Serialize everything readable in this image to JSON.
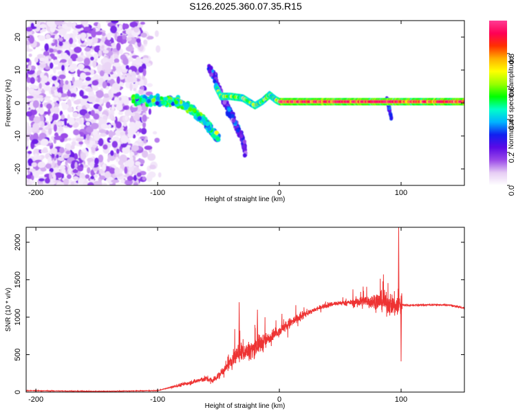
{
  "title": "S126.2025.360.07.35.R15",
  "colors": {
    "snr_line": "#ee3333",
    "frame": "#000000",
    "background": "#ffffff"
  },
  "chart_data": [
    {
      "type": "heatmap",
      "name": "spectrogram",
      "title": "S126.2025.360.07.35.R15",
      "xlabel": "Height of straight line (km)",
      "ylabel": "Frequency (Hz)",
      "xlim": [
        -208,
        152
      ],
      "ylim": [
        -25,
        25
      ],
      "xticks": [
        -200,
        -100,
        0,
        100
      ],
      "yticks": [
        -20,
        -10,
        0,
        10,
        20
      ],
      "colorbar": {
        "label": "Normalized spectral amplitude",
        "range": [
          0,
          1
        ],
        "ticks": [
          "0.0",
          "0.2",
          "0.4",
          "0.6",
          "0.8"
        ],
        "tick_values": [
          0.0,
          0.2,
          0.4,
          0.6,
          0.8
        ],
        "colors": [
          "#ffffff",
          "#e6cdf4",
          "#9a49e8",
          "#5a0ae6",
          "#1020f0",
          "#00b4ff",
          "#00ffc8",
          "#00ff00",
          "#9aff00",
          "#ffff00",
          "#ffb000",
          "#ff3000",
          "#ff0055",
          "#ff3b93"
        ]
      },
      "features": [
        {
          "label": "noise",
          "x_range": [
            -208,
            -110
          ],
          "freq_range": [
            -25,
            25
          ],
          "amplitude": 0.15
        },
        {
          "label": "signal_pre",
          "points": [
            [
              -120,
              1.0
            ],
            [
              -100,
              0.5
            ],
            [
              -85,
              0.5
            ],
            [
              -75,
              -1.5
            ],
            [
              -65,
              -4.0
            ],
            [
              -58,
              -7.0
            ],
            [
              -50,
              -11.0
            ]
          ],
          "amplitude": 0.45
        },
        {
          "label": "doppler_branch",
          "points": [
            [
              -58,
              11.0
            ],
            [
              -52,
              7.0
            ],
            [
              -46,
              1.0
            ],
            [
              -40,
              -3.0
            ],
            [
              -35,
              -7.0
            ],
            [
              -30,
              -11.0
            ],
            [
              -28,
              -15.0
            ]
          ],
          "amplitude": 0.25
        },
        {
          "label": "carrier",
          "points": [
            [
              -52,
              5.0
            ],
            [
              -48,
              2.0
            ],
            [
              -40,
              2.0
            ],
            [
              -30,
              1.5
            ],
            [
              -20,
              -0.8
            ],
            [
              -14,
              0.5
            ],
            [
              -8,
              2.5
            ],
            [
              -3,
              1.0
            ],
            [
              0,
              0.4
            ],
            [
              150,
              0.4
            ]
          ],
          "amplitude": 0.9
        },
        {
          "label": "spike_near_90",
          "points": [
            [
              88,
              1.5
            ],
            [
              90,
              -1.0
            ],
            [
              92,
              -4.5
            ]
          ],
          "amplitude": 0.3
        }
      ]
    },
    {
      "type": "line",
      "name": "snr",
      "xlabel": "Height of straight line (km)",
      "ylabel": "SNR (10 * v/v)",
      "xlim": [
        -208,
        152
      ],
      "ylim": [
        0,
        2200
      ],
      "xticks": [
        -200,
        -100,
        0,
        100
      ],
      "yticks": [
        0,
        500,
        1000,
        1500,
        2000
      ],
      "series": [
        {
          "name": "SNR",
          "x": [
            -208,
            -180,
            -150,
            -120,
            -100,
            -90,
            -80,
            -70,
            -60,
            -55,
            -50,
            -45,
            -40,
            -35,
            -30,
            -25,
            -20,
            -15,
            -10,
            -5,
            0,
            5,
            10,
            15,
            20,
            25,
            30,
            35,
            40,
            45,
            50,
            55,
            60,
            65,
            70,
            75,
            80,
            85,
            90,
            95,
            100,
            105,
            110,
            120,
            130,
            140,
            152
          ],
          "y": [
            20,
            15,
            10,
            15,
            20,
            60,
            100,
            140,
            180,
            150,
            220,
            300,
            400,
            520,
            540,
            550,
            600,
            650,
            700,
            770,
            820,
            880,
            930,
            980,
            1030,
            1070,
            1100,
            1140,
            1160,
            1180,
            1190,
            1190,
            1200,
            1200,
            1210,
            1210,
            1210,
            1210,
            1180,
            1150,
            1170,
            1160,
            1160,
            1165,
            1165,
            1160,
            1120
          ],
          "peak_values": [
            [
              -33,
              1200
            ],
            [
              -18,
              1100
            ],
            [
              98,
              2200
            ],
            [
              100,
              410
            ]
          ]
        }
      ]
    }
  ]
}
